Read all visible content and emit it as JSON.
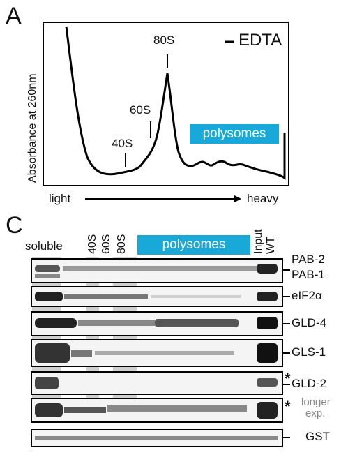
{
  "panel_a": {
    "letter": "A",
    "y_axis_label": "Absorbance at 260nm",
    "condition": "EDTA",
    "peaks": [
      "40S",
      "60S",
      "80S"
    ],
    "polysomes_label": "polysomes",
    "x_left": "light",
    "x_right": "heavy"
  },
  "panel_c": {
    "letter": "C",
    "soluble_label": "soluble",
    "lane_headers": [
      "40S",
      "60S",
      "80S"
    ],
    "polysomes_label": "polysomes",
    "input_label": "Input",
    "wt_label": "WT",
    "blots": [
      {
        "label": "PAB-2",
        "label2": "PAB-1"
      },
      {
        "label": "eIF2α"
      },
      {
        "label": "GLD-4"
      },
      {
        "label": "GLS-1"
      },
      {
        "label": "GLD-2"
      },
      {
        "label": "longer",
        "label2": "exp."
      },
      {
        "label": "GST"
      }
    ],
    "star": "*"
  },
  "colors": {
    "polysome_box": "#18a9d8",
    "shade": "#cfcfcf"
  }
}
